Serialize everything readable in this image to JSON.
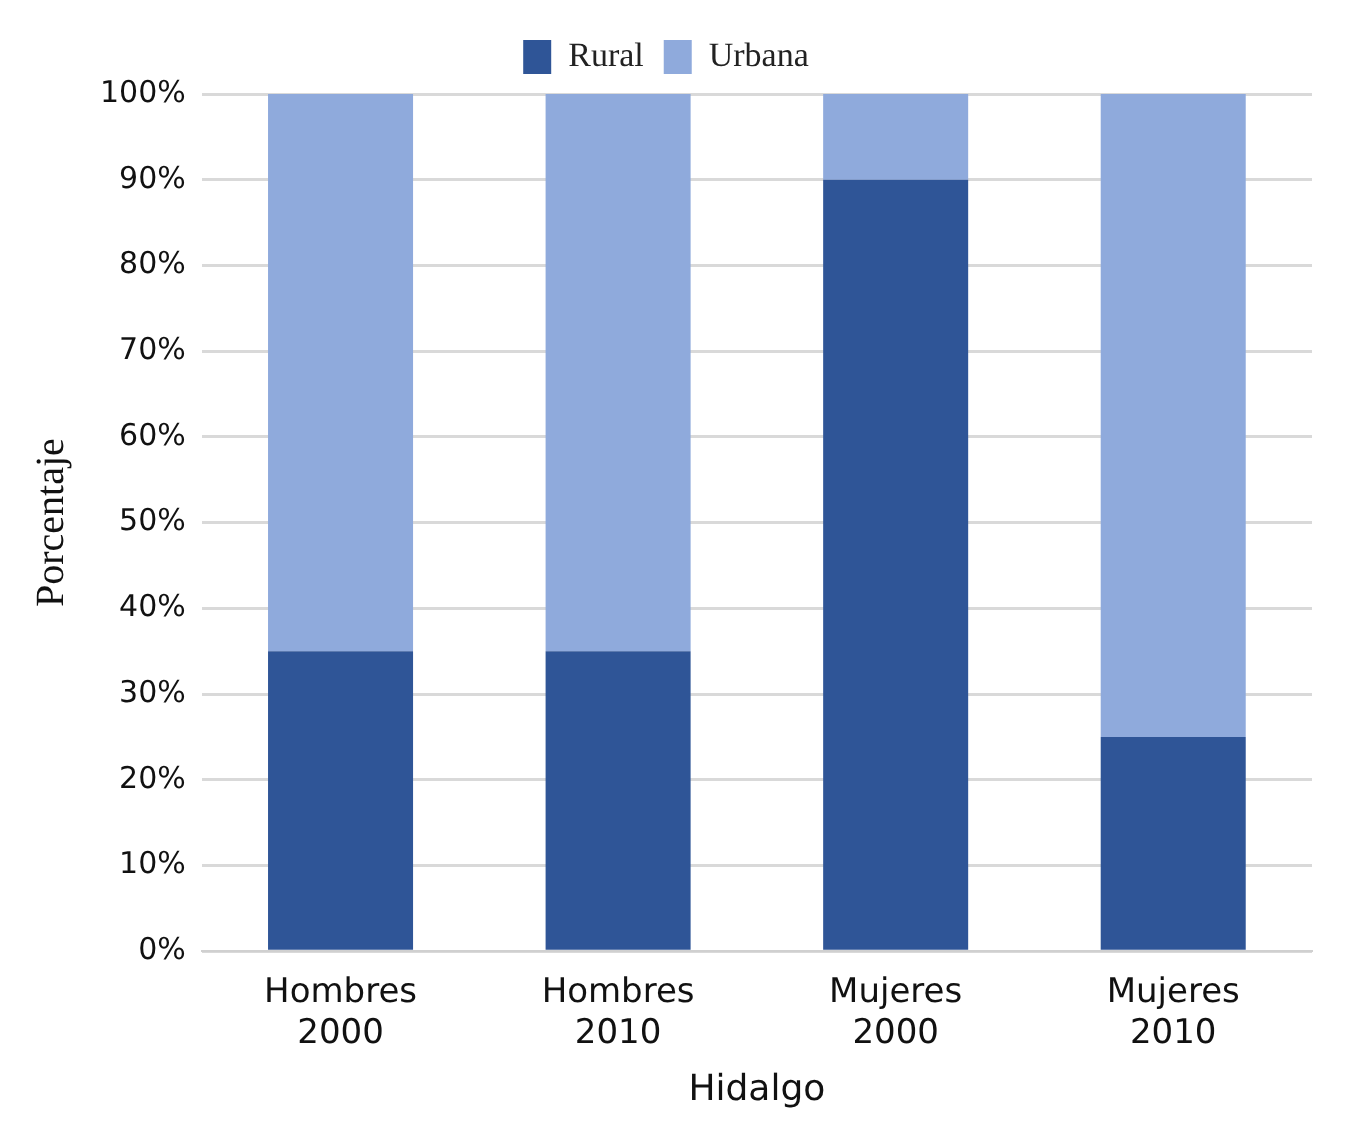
{
  "chart_data": {
    "type": "bar",
    "stacked": true,
    "categories": [
      "Hombres 2000",
      "Hombres 2010",
      "Mujeres 2000",
      "Mujeres 2010"
    ],
    "series": [
      {
        "name": "Rural",
        "color": "#2f5597",
        "values": [
          35,
          35,
          90,
          25
        ]
      },
      {
        "name": "Urbana",
        "color": "#8faadc",
        "values": [
          65,
          65,
          10,
          75
        ]
      }
    ],
    "ylim": [
      0,
      100
    ],
    "yticks": [
      {
        "value": 0,
        "label": "0%"
      },
      {
        "value": 10,
        "label": "10%"
      },
      {
        "value": 20,
        "label": "20%"
      },
      {
        "value": 30,
        "label": "30%"
      },
      {
        "value": 40,
        "label": "40%"
      },
      {
        "value": 50,
        "label": "50%"
      },
      {
        "value": 60,
        "label": "60%"
      },
      {
        "value": 70,
        "label": "70%"
      },
      {
        "value": 80,
        "label": "80%"
      },
      {
        "value": 90,
        "label": "90%"
      },
      {
        "value": 100,
        "label": "100%"
      }
    ],
    "ylabel": "Porcentaje",
    "xlabel": "Hidalgo",
    "grid": "y",
    "legend": "top"
  }
}
